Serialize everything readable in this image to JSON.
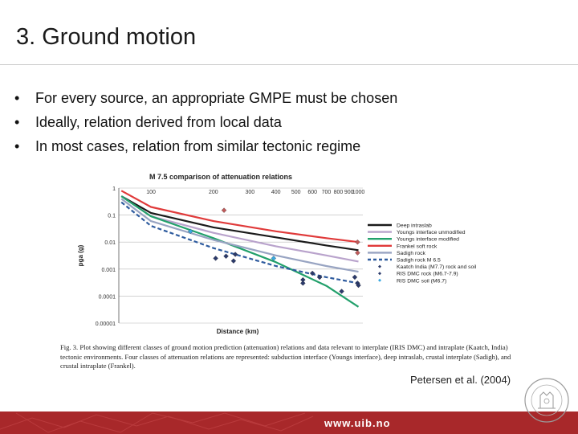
{
  "slide": {
    "title": "3. Ground motion",
    "bullets": [
      "For every source, an appropriate GMPE must be chosen",
      "Ideally, relation derived from local data",
      "In most cases, relation from similar tectonic regime"
    ],
    "citation": "Petersen et al. (2004)",
    "footer_url": "www.uib.no",
    "seal_text": "UNIVERSITAS BERGENSIS"
  },
  "figure": {
    "caption": "Fig. 3. Plot showing different classes of ground motion prediction (attenuation) relations and data relevant to interplate (IRIS DMC) and intraplate (Kaatch, India) tectonic environments. Four classes of attenuation relations are represented: subduction interface (Youngs interface), deep intraslab, crustal interplate (Sadigh), and crustal intraplate (Frankel)."
  },
  "chart_data": {
    "type": "line",
    "title": "M 7.5 comparison of attenuation relations",
    "xlabel": "Distance (km)",
    "ylabel": "pga (g)",
    "x_scale": "log",
    "y_scale": "log",
    "xlim": [
      70,
      1050
    ],
    "ylim": [
      1e-05,
      1
    ],
    "x_ticks": [
      100,
      200,
      300,
      400,
      500,
      600,
      700,
      800,
      900,
      1000
    ],
    "y_ticks": [
      {
        "value": 1,
        "label": "1"
      },
      {
        "value": 0.1,
        "label": "0.1"
      },
      {
        "value": 0.01,
        "label": "0.01"
      },
      {
        "value": 0.001,
        "label": "0.001"
      },
      {
        "value": 0.0001,
        "label": "0.0001"
      },
      {
        "value": 1e-05,
        "label": "0.00001"
      }
    ],
    "grid": "horizontal",
    "legend_position": "right",
    "series": [
      {
        "name": "Deep intraslab",
        "kind": "line",
        "color": "#1a1a1a",
        "dash": "solid",
        "x": [
          72,
          100,
          200,
          400,
          700,
          1000
        ],
        "y": [
          0.5,
          0.12,
          0.035,
          0.015,
          0.0075,
          0.005
        ]
      },
      {
        "name": "Youngs interface unmodified",
        "kind": "line",
        "color": "#b9a3cc",
        "dash": "solid",
        "x": [
          72,
          100,
          200,
          400,
          700,
          1000
        ],
        "y": [
          0.5,
          0.09,
          0.022,
          0.007,
          0.0032,
          0.0019
        ]
      },
      {
        "name": "Youngs interface modified",
        "kind": "line",
        "color": "#22a06b",
        "dash": "solid",
        "x": [
          72,
          100,
          200,
          400,
          700,
          1000
        ],
        "y": [
          0.5,
          0.09,
          0.014,
          0.0018,
          0.00024,
          4e-05
        ]
      },
      {
        "name": "Frankel soft rock",
        "kind": "line",
        "color": "#e03a3a",
        "dash": "solid",
        "x": [
          72,
          100,
          200,
          400,
          700,
          1000
        ],
        "y": [
          0.8,
          0.2,
          0.06,
          0.025,
          0.014,
          0.01
        ]
      },
      {
        "name": "Sadigh rock",
        "kind": "line",
        "color": "#98a4c2",
        "dash": "solid",
        "x": [
          72,
          100,
          200,
          400,
          700,
          1000
        ],
        "y": [
          0.4,
          0.06,
          0.012,
          0.0032,
          0.0013,
          0.0008
        ]
      },
      {
        "name": "Sadigh rock M 6.5",
        "kind": "line",
        "color": "#2e5b9e",
        "dash": "dashed",
        "x": [
          72,
          100,
          200,
          400,
          700,
          1000
        ],
        "y": [
          0.3,
          0.04,
          0.006,
          0.0013,
          0.0005,
          0.0003
        ]
      },
      {
        "name": "Kaatch India (M7.7) rock and soil",
        "kind": "points",
        "color": "#2b3a6b",
        "x": [
          230,
          250,
          540,
          600,
          650,
          830,
          960,
          990
        ],
        "y": [
          0.003,
          0.002,
          0.0004,
          0.0007,
          0.0005,
          0.00015,
          0.0005,
          0.0003
        ]
      },
      {
        "name": "RIS DMC rock (M6.7-7.9)",
        "kind": "points",
        "color": "#2b3a6b",
        "x": [
          205,
          255,
          540,
          650,
          1000
        ],
        "y": [
          0.0025,
          0.0035,
          0.0003,
          0.0005,
          0.00025
        ]
      },
      {
        "name": "RIS DMC soil (M6.7)",
        "kind": "points",
        "color": "#3aa8e0",
        "x": [
          155,
          390
        ],
        "y": [
          0.025,
          0.0025
        ]
      },
      {
        "name": "",
        "kind": "points",
        "color": "#c05a5a",
        "x": [
          225,
          990,
          990
        ],
        "y": [
          0.15,
          0.01,
          0.004
        ]
      }
    ]
  }
}
